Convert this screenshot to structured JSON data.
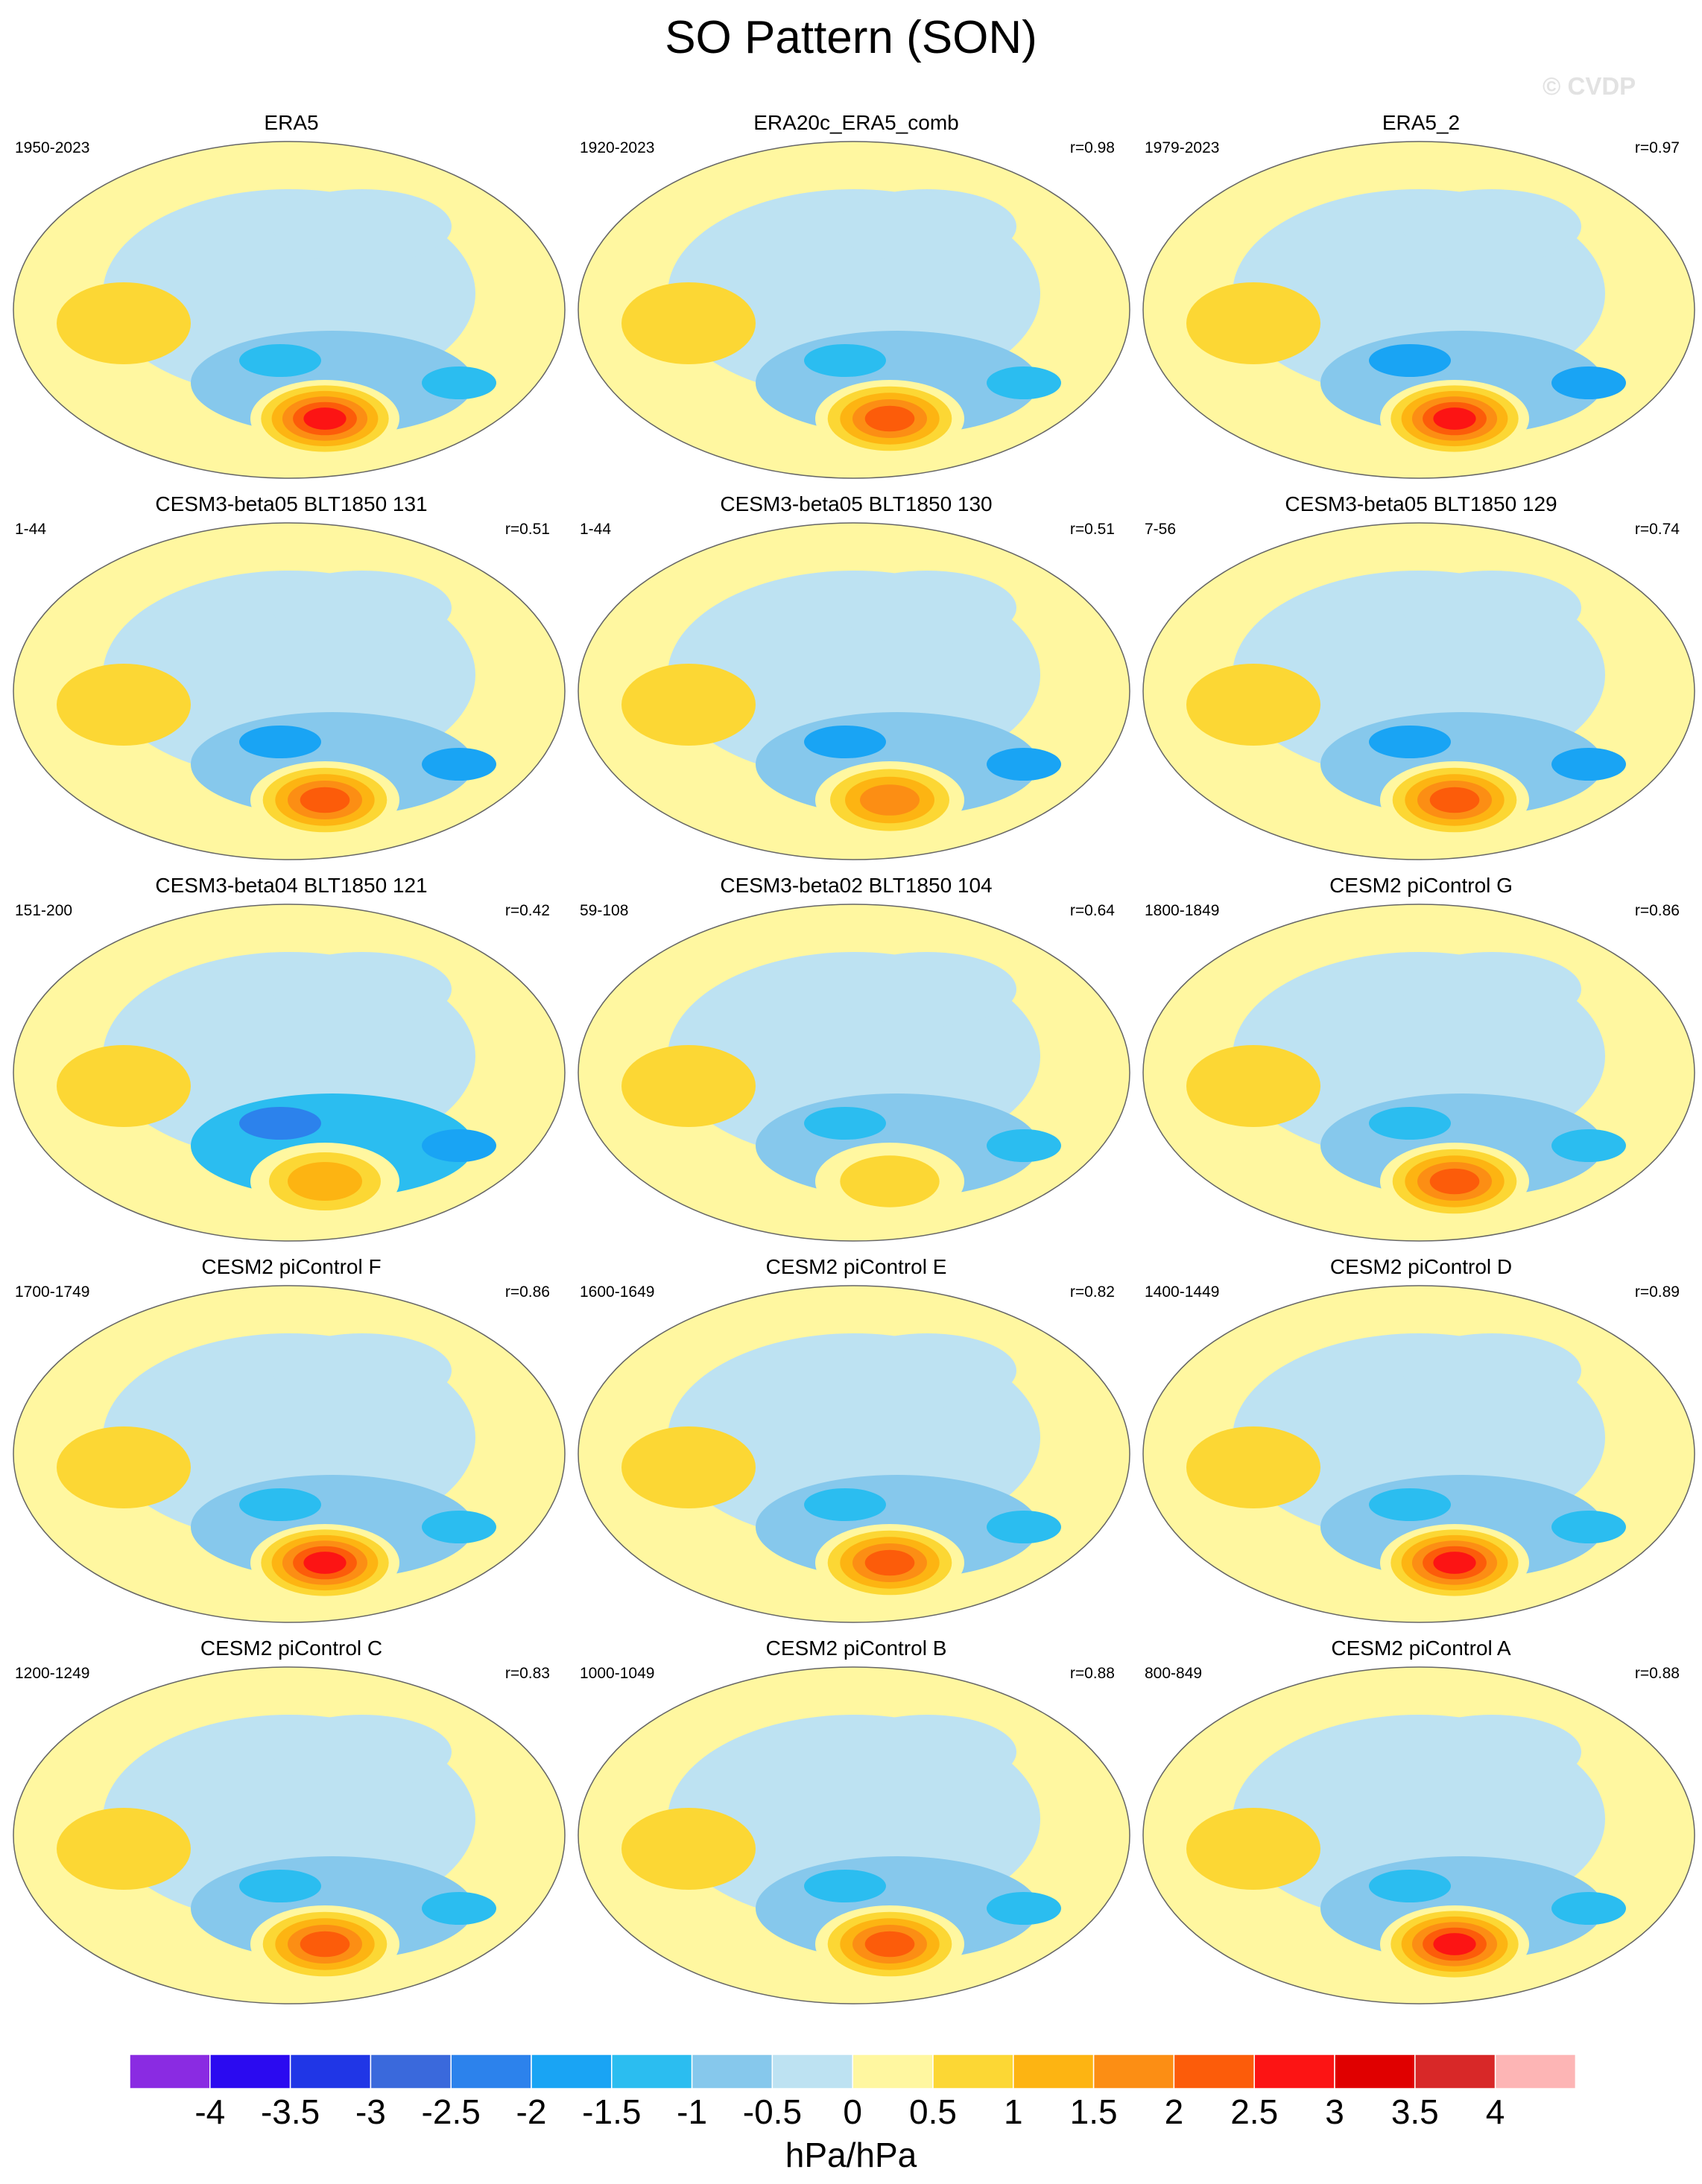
{
  "title": "SO Pattern (SON)",
  "watermark": "© CVDP",
  "chart_data": {
    "type": "heatmap",
    "title": "SO Pattern (SON)",
    "projection": "global map (Robinson-like, Pacific-centered)",
    "variable_units": "hPa/hPa",
    "panels": [
      {
        "title": "ERA5",
        "years": "1950-2023",
        "r": "",
        "south_pacific_max": 3.0,
        "pacific_min": -1.5
      },
      {
        "title": "ERA20c_ERA5_comb",
        "years": "1920-2023",
        "r": "r=0.98",
        "south_pacific_max": 2.5,
        "pacific_min": -1.5
      },
      {
        "title": "ERA5_2",
        "years": "1979-2023",
        "r": "r=0.97",
        "south_pacific_max": 3.0,
        "pacific_min": -2.0
      },
      {
        "title": "CESM3-beta05 BLT1850 131",
        "years": "1-44",
        "r": "r=0.51",
        "south_pacific_max": 2.5,
        "pacific_min": -2.0
      },
      {
        "title": "CESM3-beta05 BLT1850 130",
        "years": "1-44",
        "r": "r=0.51",
        "south_pacific_max": 2.0,
        "pacific_min": -2.0
      },
      {
        "title": "CESM3-beta05 BLT1850 129",
        "years": "7-56",
        "r": "r=0.74",
        "south_pacific_max": 2.5,
        "pacific_min": -2.0
      },
      {
        "title": "CESM3-beta04 BLT1850 121",
        "years": "151-200",
        "r": "r=0.42",
        "south_pacific_max": 1.5,
        "pacific_min": -2.5
      },
      {
        "title": "CESM3-beta02 BLT1850 104",
        "years": "59-108",
        "r": "r=0.64",
        "south_pacific_max": 1.0,
        "pacific_min": -1.5
      },
      {
        "title": "CESM2 piControl G",
        "years": "1800-1849",
        "r": "r=0.86",
        "south_pacific_max": 2.5,
        "pacific_min": -1.5
      },
      {
        "title": "CESM2 piControl F",
        "years": "1700-1749",
        "r": "r=0.86",
        "south_pacific_max": 3.0,
        "pacific_min": -1.5
      },
      {
        "title": "CESM2 piControl E",
        "years": "1600-1649",
        "r": "r=0.82",
        "south_pacific_max": 2.5,
        "pacific_min": -1.5
      },
      {
        "title": "CESM2 piControl D",
        "years": "1400-1449",
        "r": "r=0.89",
        "south_pacific_max": 3.0,
        "pacific_min": -1.5
      },
      {
        "title": "CESM2 piControl C",
        "years": "1200-1249",
        "r": "r=0.83",
        "south_pacific_max": 2.5,
        "pacific_min": -1.5
      },
      {
        "title": "CESM2 piControl B",
        "years": "1000-1049",
        "r": "r=0.88",
        "south_pacific_max": 2.5,
        "pacific_min": -1.5
      },
      {
        "title": "CESM2 piControl A",
        "years": "800-849",
        "r": "r=0.88",
        "south_pacific_max": 3.0,
        "pacific_min": -1.5
      }
    ],
    "colorbar": {
      "labels": [
        "-4",
        "-3.5",
        "-3",
        "-2.5",
        "-2",
        "-1.5",
        "-1",
        "-0.5",
        "0",
        "0.5",
        "1",
        "1.5",
        "2",
        "2.5",
        "3",
        "3.5",
        "4"
      ],
      "colors": [
        "#8a2be2",
        "#2b0af0",
        "#2036e6",
        "#3a69dc",
        "#2c82ec",
        "#19a4f4",
        "#2bbdf0",
        "#86c8ec",
        "#bde2f2",
        "#fff7a0",
        "#fcd734",
        "#fdb412",
        "#fc8e14",
        "#fc5c0a",
        "#fc1414",
        "#e00000",
        "#d82828",
        "#fdb5b5"
      ],
      "units": "hPa/hPa"
    }
  }
}
